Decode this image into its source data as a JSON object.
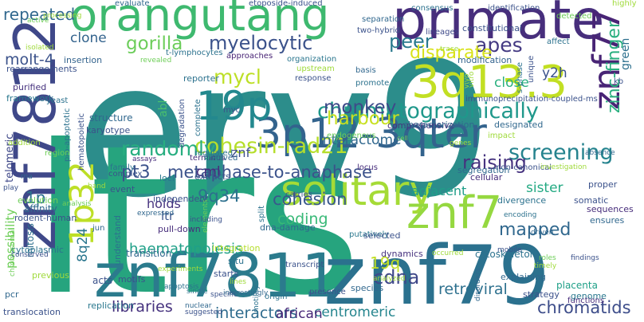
{
  "words": [
    {
      "text": "erv9",
      "color": "#2c8d8b"
    },
    {
      "text": "ltrs",
      "color": "#26a47e"
    },
    {
      "text": "znf7811",
      "color": "#2b7b8d"
    },
    {
      "text": "znf79",
      "color": "#2b718e"
    },
    {
      "text": "orangutang",
      "color": "#3eb96f"
    },
    {
      "text": "znf7812",
      "color": "#3f4889"
    },
    {
      "text": "primate",
      "color": "#472e7c"
    },
    {
      "text": "3q13.3",
      "color": "#c2df23"
    },
    {
      "text": "znf77",
      "color": "#482475"
    },
    {
      "text": "3p12-3qter",
      "color": "#33638d"
    },
    {
      "text": "solitary",
      "color": "#a5db36"
    },
    {
      "text": "19p",
      "color": "#23888e"
    },
    {
      "text": "1p32",
      "color": "#bddf26"
    },
    {
      "text": "znf7",
      "color": "#95d840"
    },
    {
      "text": "chromatographically",
      "color": "#1f988b"
    },
    {
      "text": "cohesin-rad21",
      "color": "#b5de2b"
    },
    {
      "text": "repeated",
      "color": "#31688e"
    },
    {
      "text": "gorilla",
      "color": "#6ccd5a"
    },
    {
      "text": "myelocytic",
      "color": "#3b528b"
    },
    {
      "text": "apes",
      "color": "#443a83"
    },
    {
      "text": "peer",
      "color": "#29798e"
    },
    {
      "text": "randomly",
      "color": "#28ae80"
    },
    {
      "text": "mycl",
      "color": "#bddf26"
    },
    {
      "text": "monkey",
      "color": "#3e4a89"
    },
    {
      "text": "harbour",
      "color": "#c8e020"
    },
    {
      "text": "metaphase-to-anaphase",
      "color": "#3b528b"
    },
    {
      "text": "pt3",
      "color": "#3b528b"
    },
    {
      "text": "screening",
      "color": "#25838e"
    },
    {
      "text": "zinc-finger",
      "color": "#29af7f"
    },
    {
      "text": "interactome",
      "color": "#31688e"
    },
    {
      "text": "cohesion",
      "color": "#38588c"
    },
    {
      "text": "raising",
      "color": "#46337f"
    },
    {
      "text": "haematopoiesis",
      "color": "#1fa088"
    },
    {
      "text": "retroviral",
      "color": "#2d708e"
    },
    {
      "text": "chromatids",
      "color": "#3d4d8a"
    },
    {
      "text": "libraries",
      "color": "#46327e"
    },
    {
      "text": "centromeric",
      "color": "#25858e"
    },
    {
      "text": "interactors",
      "color": "#2f6c8e"
    },
    {
      "text": "african",
      "color": "#482878"
    },
    {
      "text": "cdna",
      "color": "#3f4889"
    },
    {
      "text": "molt-4",
      "color": "#3b528b"
    },
    {
      "text": "disparate",
      "color": "#d8e219"
    },
    {
      "text": "9q34",
      "color": "#2d708e"
    },
    {
      "text": "coding",
      "color": "#38b977"
    },
    {
      "text": "mapped",
      "color": "#31688e"
    },
    {
      "text": "clone",
      "color": "#33638d"
    },
    {
      "text": "y2h",
      "color": "#3b528b"
    },
    {
      "text": "1p",
      "color": "#2c728e"
    },
    {
      "text": "19q",
      "color": "#c2df23"
    },
    {
      "text": "8q24",
      "color": "#2a768e"
    },
    {
      "text": "possibility",
      "color": "#6ece58"
    },
    {
      "text": "holds",
      "color": "#46337f"
    },
    {
      "text": "adjacent",
      "color": "#1f9e89"
    },
    {
      "text": "sister",
      "color": "#24aa83"
    },
    {
      "text": "close",
      "color": "#2ab07f"
    },
    {
      "text": "telomeric",
      "color": "#3f4889"
    },
    {
      "text": "cml",
      "color": "#472d7b"
    },
    {
      "text": "znf",
      "color": "#3d4e8a"
    },
    {
      "text": "ltr",
      "color": "#3b528b"
    },
    {
      "text": "green",
      "color": "#2d708e"
    },
    {
      "text": "abl",
      "color": "#4ac16d"
    },
    {
      "text": "mitosis",
      "color": "#2e6f8e"
    },
    {
      "text": "structure",
      "color": "#31688e"
    },
    {
      "text": "karyotype",
      "color": "#3b528b"
    },
    {
      "text": "framework",
      "color": "#2a788e"
    },
    {
      "text": "purified",
      "color": "#46327e"
    },
    {
      "text": "rearrangements",
      "color": "#3b528b"
    },
    {
      "text": "insertion",
      "color": "#33638d"
    },
    {
      "text": "t-lymphocytes",
      "color": "#2c728e"
    },
    {
      "text": "approaches",
      "color": "#482475"
    },
    {
      "text": "organization",
      "color": "#2a768e"
    },
    {
      "text": "modification",
      "color": "#33638d"
    },
    {
      "text": "reporter",
      "color": "#2c728e"
    },
    {
      "text": "lineages",
      "color": "#3e4989"
    },
    {
      "text": "constitutional",
      "color": "#3b528b"
    },
    {
      "text": "affect",
      "color": "#2c728e"
    },
    {
      "text": "immunoprecipitation-coupled-ms",
      "color": "#3b528b"
    },
    {
      "text": "comprehensive",
      "color": "#46327e"
    },
    {
      "text": "characterization",
      "color": "#31688e"
    },
    {
      "text": "designated",
      "color": "#31688e"
    },
    {
      "text": "non-canonical",
      "color": "#3b528b"
    },
    {
      "text": "cellular",
      "color": "#472d7b"
    },
    {
      "text": "segregation",
      "color": "#31688e"
    },
    {
      "text": "divergence",
      "color": "#2c728e"
    },
    {
      "text": "somatic",
      "color": "#3b528b"
    },
    {
      "text": "sequences",
      "color": "#472d7b"
    },
    {
      "text": "ensures",
      "color": "#31688e"
    },
    {
      "text": "proper",
      "color": "#3b528b"
    },
    {
      "text": "genome",
      "color": "#2a788e"
    },
    {
      "text": "placenta",
      "color": "#1fa088"
    },
    {
      "text": "strategy",
      "color": "#3b528b"
    },
    {
      "text": "explaining",
      "color": "#31688e"
    },
    {
      "text": "functions",
      "color": "#472d7b"
    },
    {
      "text": "cytoskeleton",
      "color": "#2c728e"
    },
    {
      "text": "dynamics",
      "color": "#46327e"
    },
    {
      "text": "presence",
      "color": "#3b528b"
    },
    {
      "text": "species",
      "color": "#31688e"
    },
    {
      "text": "origin",
      "color": "#2c728e"
    },
    {
      "text": "motifs",
      "color": "#3b528b"
    },
    {
      "text": "replication",
      "color": "#2a788e"
    },
    {
      "text": "translocation",
      "color": "#3b528b"
    },
    {
      "text": "pcr",
      "color": "#31688e"
    },
    {
      "text": "acts",
      "color": "#3b528b"
    },
    {
      "text": "previous",
      "color": "#9fda3a"
    },
    {
      "text": "transition",
      "color": "#31688e"
    },
    {
      "text": "starts",
      "color": "#3b528b"
    },
    {
      "text": "situ",
      "color": "#2c728e"
    },
    {
      "text": "transcript",
      "color": "#3b528b"
    },
    {
      "text": "putatively",
      "color": "#2a788e"
    },
    {
      "text": "selected",
      "color": "#3b528b"
    },
    {
      "text": "dna-damage",
      "color": "#31688e"
    },
    {
      "text": "split",
      "color": "#2c728e"
    },
    {
      "text": "integration",
      "color": "#b5de2b"
    },
    {
      "text": "understand",
      "color": "#2c728e"
    },
    {
      "text": "pull-down",
      "color": "#472d7b"
    },
    {
      "text": "extracts",
      "color": "#3b528b"
    },
    {
      "text": "loci",
      "color": "#2a788e"
    },
    {
      "text": "independent",
      "color": "#3b528b"
    },
    {
      "text": "jun",
      "color": "#31688e"
    },
    {
      "text": "cytoplasmic",
      "color": "#2c728e"
    },
    {
      "text": "rodent-human",
      "color": "#3b528b"
    },
    {
      "text": "affinity",
      "color": "#31688e"
    },
    {
      "text": "evolution",
      "color": "#6ece58"
    },
    {
      "text": "event",
      "color": "#3b528b"
    },
    {
      "text": "family",
      "color": "#2c728e"
    },
    {
      "text": "complex",
      "color": "#3b528b"
    },
    {
      "text": "terminus",
      "color": "#472d7b"
    },
    {
      "text": "involved",
      "color": "#31688e"
    },
    {
      "text": "regulated",
      "color": "#2c728e"
    },
    {
      "text": "carries",
      "color": "#3b528b"
    },
    {
      "text": "locus",
      "color": "#472d7b"
    },
    {
      "text": "endogenous",
      "color": "#6ece58"
    },
    {
      "text": "pro-apoptotic",
      "color": "#2c728e"
    },
    {
      "text": "hematopoietic",
      "color": "#3b528b"
    },
    {
      "text": "yeast",
      "color": "#2c728e"
    },
    {
      "text": "addition",
      "color": "#9fda3a"
    },
    {
      "text": "region",
      "color": "#6ece58"
    },
    {
      "text": "degradation",
      "color": "#3b528b"
    },
    {
      "text": "complete",
      "color": "#2c728e"
    },
    {
      "text": "myc",
      "color": "#3b528b"
    },
    {
      "text": "upstream",
      "color": "#9fda3a"
    },
    {
      "text": "response",
      "color": "#3b528b"
    },
    {
      "text": "basis",
      "color": "#31688e"
    },
    {
      "text": "promote",
      "color": "#2c728e"
    },
    {
      "text": "two-hybrid",
      "color": "#3b528b"
    },
    {
      "text": "separation",
      "color": "#31688e"
    },
    {
      "text": "consensus",
      "color": "#2c728e"
    },
    {
      "text": "identification",
      "color": "#3b528b"
    },
    {
      "text": "detected",
      "color": "#6ece58"
    },
    {
      "text": "highly",
      "color": "#9fda3a"
    },
    {
      "text": "evaluate",
      "color": "#31688e"
    },
    {
      "text": "etoposide-induced",
      "color": "#3b528b"
    },
    {
      "text": "processing",
      "color": "#9fda3a"
    },
    {
      "text": "active",
      "color": "#6ece58"
    },
    {
      "text": "isolated",
      "color": "#9fda3a"
    },
    {
      "text": "revealed",
      "color": "#6ece58"
    },
    {
      "text": "trace",
      "color": "#9fda3a"
    },
    {
      "text": "unique",
      "color": "#3b528b"
    },
    {
      "text": "s-phase",
      "color": "#2c728e"
    },
    {
      "text": "vitro",
      "color": "#9fda3a"
    },
    {
      "text": "vivo",
      "color": "#9fda3a"
    },
    {
      "text": "kb",
      "color": "#3b528b"
    },
    {
      "text": "impact",
      "color": "#9fda3a"
    },
    {
      "text": "absence",
      "color": "#31688e"
    },
    {
      "text": "investigation",
      "color": "#9fda3a"
    },
    {
      "text": "play",
      "color": "#3b528b"
    },
    {
      "text": "rna",
      "color": "#31688e"
    },
    {
      "text": "chromosomal",
      "color": "#6ece58"
    },
    {
      "text": "band",
      "color": "#9fda3a"
    },
    {
      "text": "analysis",
      "color": "#6ece58"
    },
    {
      "text": "conserved",
      "color": "#3b528b"
    },
    {
      "text": "assays",
      "color": "#472d7b"
    },
    {
      "text": "experiments",
      "color": "#9fda3a"
    },
    {
      "text": "expressed",
      "color": "#31688e"
    },
    {
      "text": "elements",
      "color": "#6ece58"
    },
    {
      "text": "including",
      "color": "#3b528b"
    },
    {
      "text": "apoptosis",
      "color": "#2c728e"
    },
    {
      "text": "nuclear",
      "color": "#31688e"
    },
    {
      "text": "suggested",
      "color": "#3b528b"
    },
    {
      "text": "single",
      "color": "#2c728e"
    },
    {
      "text": "specific",
      "color": "#3b528b"
    },
    {
      "text": "interestingly",
      "color": "#31688e"
    },
    {
      "text": "motility",
      "color": "#2c728e"
    },
    {
      "text": "lines",
      "color": "#9fda3a"
    },
    {
      "text": "occurred",
      "color": "#9fda3a"
    },
    {
      "text": "mobile",
      "color": "#3b528b"
    },
    {
      "text": "driven",
      "color": "#31688e"
    },
    {
      "text": "encoding",
      "color": "#2c728e"
    },
    {
      "text": "roles",
      "color": "#6ece58"
    },
    {
      "text": "findings",
      "color": "#3b528b"
    },
    {
      "text": "disorders",
      "color": "#31688e"
    },
    {
      "text": "timely",
      "color": "#9fda3a"
    },
    {
      "text": "analyzed",
      "color": "#9fda3a"
    },
    {
      "text": "cell",
      "color": "#6ece58"
    },
    {
      "text": "genes",
      "color": "#9fda3a"
    }
  ]
}
